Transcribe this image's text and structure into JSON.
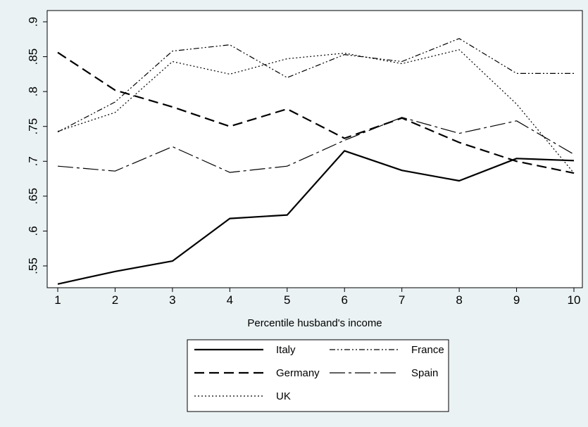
{
  "chart_data": {
    "type": "line",
    "title": "",
    "xlabel": "Percentile husband's income",
    "ylabel": "",
    "x": [
      1,
      2,
      3,
      4,
      5,
      6,
      7,
      8,
      9,
      10
    ],
    "x_ticks": [
      "1",
      "2",
      "3",
      "4",
      "5",
      "6",
      "7",
      "8",
      "9",
      "10"
    ],
    "y_ticks": [
      ".55",
      ".6",
      ".65",
      ".7",
      ".75",
      ".8",
      ".85",
      ".9"
    ],
    "xlim": [
      1,
      10
    ],
    "ylim": [
      0.52,
      0.9
    ],
    "grid": false,
    "legend_position": "bottom",
    "series": [
      {
        "name": "Italy",
        "style": "solid",
        "values": [
          0.524,
          0.542,
          0.557,
          0.618,
          0.623,
          0.715,
          0.687,
          0.672,
          0.704,
          0.701
        ]
      },
      {
        "name": "France",
        "style": "dash-dot-dot",
        "values": [
          0.742,
          0.785,
          0.858,
          0.867,
          0.82,
          0.853,
          0.843,
          0.876,
          0.826,
          0.826
        ]
      },
      {
        "name": "Germany",
        "style": "dashed",
        "values": [
          0.856,
          0.802,
          0.778,
          0.75,
          0.775,
          0.733,
          0.762,
          0.727,
          0.7,
          0.683
        ]
      },
      {
        "name": "Spain",
        "style": "long-dash-dot",
        "values": [
          0.693,
          0.686,
          0.721,
          0.684,
          0.693,
          0.73,
          0.763,
          0.74,
          0.758,
          0.71
        ]
      },
      {
        "name": "UK",
        "style": "dotted",
        "values": [
          0.743,
          0.77,
          0.843,
          0.825,
          0.847,
          0.855,
          0.84,
          0.86,
          0.782,
          0.683
        ]
      }
    ],
    "colors": {
      "background": "#eaf2f3",
      "plot_area": "#ffffff",
      "line": "#000000"
    }
  }
}
